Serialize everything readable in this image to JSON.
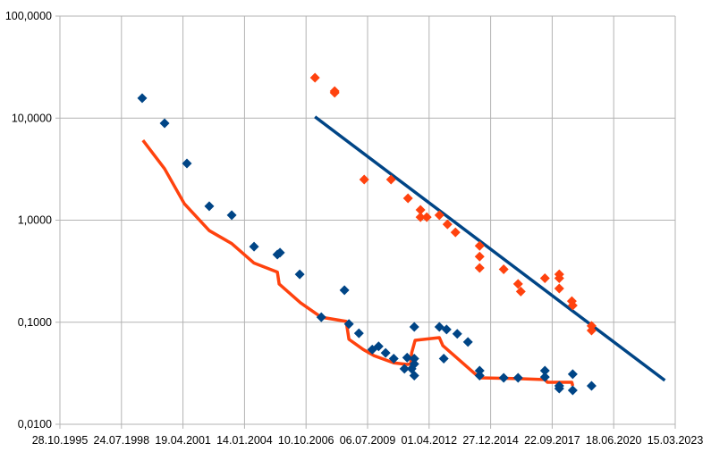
{
  "chart_data": {
    "type": "scatter",
    "title": "",
    "xlabel": "",
    "ylabel": "",
    "x_axis": {
      "type": "date",
      "range": [
        "28.10.1995",
        "15.03.2023"
      ],
      "tick_labels": [
        "28.10.1995",
        "24.07.1998",
        "19.04.2001",
        "14.01.2004",
        "10.10.2006",
        "06.07.2009",
        "01.04.2012",
        "27.12.2014",
        "22.09.2017",
        "18.06.2020",
        "15.03.2023"
      ]
    },
    "y_axis": {
      "scale": "log",
      "range": [
        0.01,
        100
      ],
      "tick_values": [
        100,
        10,
        1,
        0.1,
        0.01
      ],
      "tick_labels": [
        "100,0000",
        "10,0000",
        "1,0000",
        "0,1000",
        "0,0100"
      ]
    },
    "grid": true,
    "legend": "none",
    "colors": {
      "blue": "#004586",
      "orange": "#ff420e",
      "grid": "#b3b3b3"
    },
    "series": [
      {
        "kind": "points",
        "color": "blue",
        "marker": "diamond",
        "points": [
          [
            "26.06.1999",
            15.7
          ],
          [
            "24.06.2000",
            8.9
          ],
          [
            "22.06.2001",
            3.6
          ],
          [
            "20.06.2002",
            1.37
          ],
          [
            "20.06.2003",
            1.12
          ],
          [
            "17.06.2004",
            0.55
          ],
          [
            "01.07.2005",
            0.46
          ],
          [
            "13.08.2005",
            0.48
          ],
          [
            "29.06.2006",
            0.295
          ],
          [
            "15.06.2007",
            0.112
          ],
          [
            "25.06.2008",
            0.206
          ],
          [
            "06.09.2008",
            0.096
          ],
          [
            "15.02.2009",
            0.078
          ],
          [
            "20.09.2009",
            0.054
          ],
          [
            "01.01.2010",
            0.058
          ],
          [
            "25.04.2010",
            0.05
          ],
          [
            "04.09.2010",
            0.044
          ],
          [
            "25.02.2011",
            0.035
          ],
          [
            "10.04.2011",
            0.045
          ],
          [
            "22.06.2011",
            0.035
          ],
          [
            "04.08.2011",
            0.044
          ],
          [
            "04.08.2011",
            0.039
          ],
          [
            "04.08.2011",
            0.03
          ],
          [
            "04.08.2011",
            0.09
          ],
          [
            "15.09.2012",
            0.09
          ],
          [
            "10.01.2013",
            0.085
          ],
          [
            "25.11.2012",
            0.044
          ],
          [
            "02.07.2013",
            0.077
          ],
          [
            "23.12.2013",
            0.064
          ],
          [
            "01.07.2014",
            0.0335
          ],
          [
            "01.07.2014",
            0.03
          ],
          [
            "27.07.2015",
            0.0285
          ],
          [
            "17.03.2016",
            0.0285
          ],
          [
            "27.05.2017",
            0.0335
          ],
          [
            "27.05.2017",
            0.029
          ],
          [
            "15.01.2018",
            0.0238
          ],
          [
            "15.01.2018",
            0.0224
          ],
          [
            "22.08.2018",
            0.031
          ],
          [
            "22.08.2018",
            0.0215
          ],
          [
            "24.06.2019",
            0.0238
          ]
        ]
      },
      {
        "kind": "points",
        "color": "orange",
        "marker": "diamond",
        "points": [
          [
            "04.03.2007",
            24.9
          ],
          [
            "18.01.2008",
            18.4
          ],
          [
            "18.01.2008",
            17.7
          ],
          [
            "12.05.2009",
            2.5
          ],
          [
            "22.07.2010",
            2.5
          ],
          [
            "24.04.2011",
            1.64
          ],
          [
            "13.11.2011",
            1.26
          ],
          [
            "13.11.2011",
            1.07
          ],
          [
            "23.02.2012",
            1.07
          ],
          [
            "15.09.2012",
            1.12
          ],
          [
            "24.01.2013",
            0.91
          ],
          [
            "03.06.2013",
            0.76
          ],
          [
            "01.07.2014",
            0.56
          ],
          [
            "01.07.2014",
            0.44
          ],
          [
            "01.07.2014",
            0.34
          ],
          [
            "27.07.2015",
            0.33
          ],
          [
            "17.03.2016",
            0.237
          ],
          [
            "30.04.2016",
            0.2
          ],
          [
            "27.05.2017",
            0.27
          ],
          [
            "15.01.2018",
            0.295
          ],
          [
            "15.01.2018",
            0.27
          ],
          [
            "15.01.2018",
            0.214
          ],
          [
            "08.08.2018",
            0.161
          ],
          [
            "22.08.2018",
            0.146
          ],
          [
            "24.06.2019",
            0.092
          ],
          [
            "24.06.2019",
            0.083
          ]
        ]
      },
      {
        "kind": "line",
        "color": "orange",
        "points": [
          [
            "08.07.1999",
            6.07
          ],
          [
            "24.06.2000",
            3.19
          ],
          [
            "11.05.2001",
            1.45
          ],
          [
            "20.06.2002",
            0.79
          ],
          [
            "20.06.2003",
            0.59
          ],
          [
            "17.06.2004",
            0.38
          ],
          [
            "01.07.2005",
            0.31
          ],
          [
            "30.07.2005",
            0.237
          ],
          [
            "13.07.2006",
            0.155
          ],
          [
            "15.06.2007",
            0.112
          ],
          [
            "23.07.2008",
            0.102
          ],
          [
            "06.09.2008",
            0.068
          ],
          [
            "27.04.2009",
            0.054
          ],
          [
            "20.10.2009",
            0.047
          ],
          [
            "04.09.2010",
            0.04
          ],
          [
            "10.04.2011",
            0.0386
          ],
          [
            "07.06.2011",
            0.039
          ],
          [
            "22.06.2011",
            0.05
          ],
          [
            "18.08.2011",
            0.0665
          ],
          [
            "15.09.2012",
            0.0706
          ],
          [
            "10.11.2012",
            0.059
          ],
          [
            "01.07.2014",
            0.0285
          ],
          [
            "17.03.2016",
            0.028
          ],
          [
            "27.05.2017",
            0.0274
          ],
          [
            "08.07.2017",
            0.0258
          ],
          [
            "08.08.2018",
            0.0258
          ],
          [
            "22.08.2018",
            0.0238
          ]
        ]
      },
      {
        "kind": "trendline",
        "color": "blue",
        "points": [
          [
            "04.03.2007",
            10.3
          ],
          [
            "27.09.2022",
            0.0269
          ]
        ]
      }
    ]
  }
}
